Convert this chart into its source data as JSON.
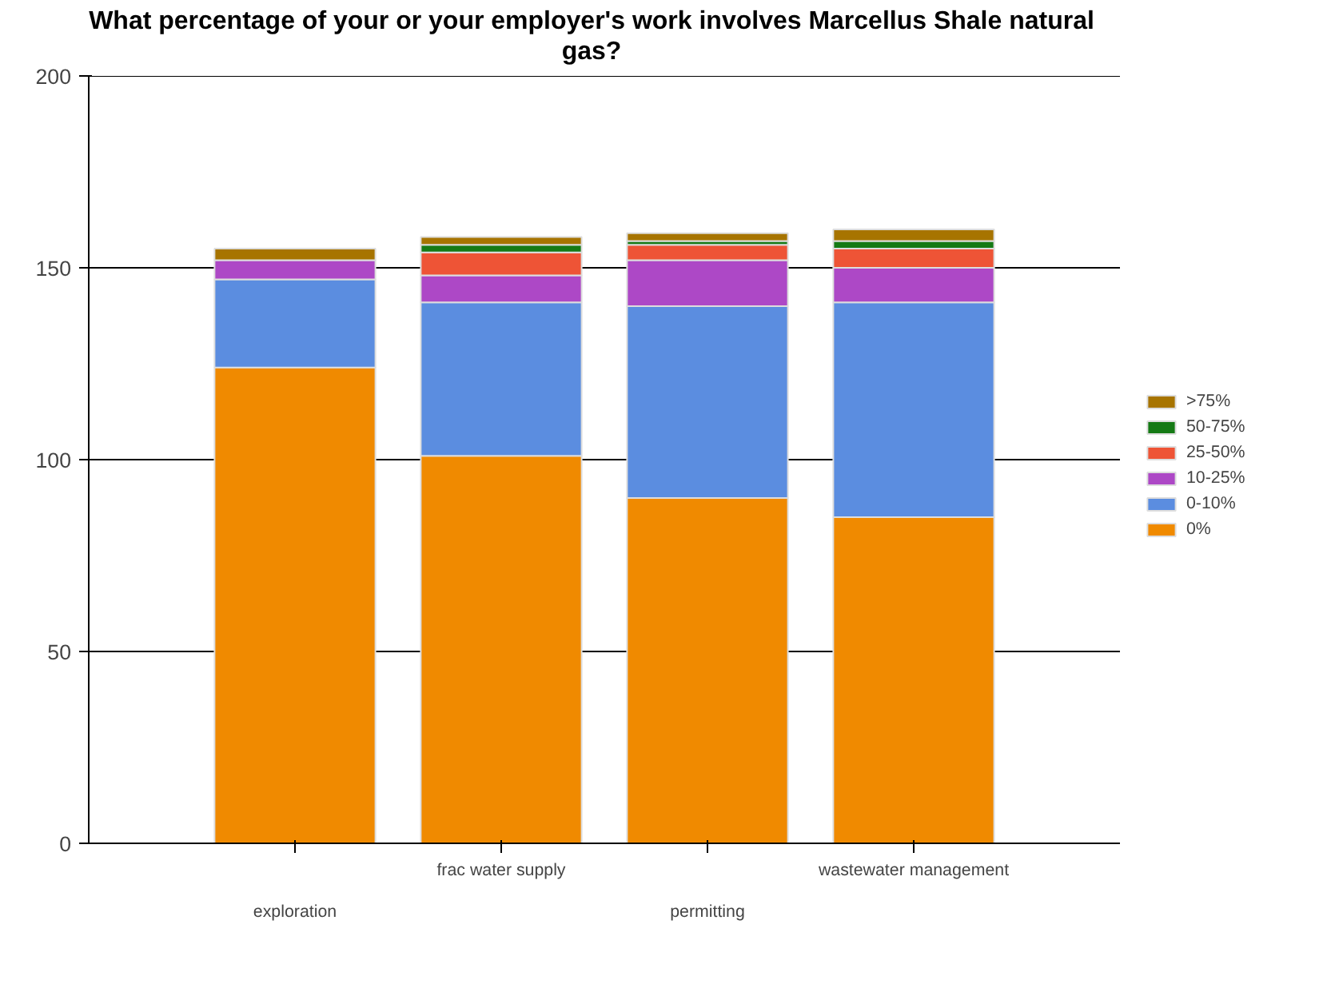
{
  "chart_data": {
    "type": "bar",
    "stacked": true,
    "title": "What percentage of your or your employer's work involves Marcellus Shale natural gas?",
    "categories": [
      "exploration",
      "frac water supply",
      "permitting",
      "wastewater management"
    ],
    "series": [
      {
        "name": "0%",
        "color": "#f08a00",
        "values": [
          124,
          101,
          90,
          85
        ]
      },
      {
        "name": "0-10%",
        "color": "#5b8de0",
        "values": [
          23,
          40,
          50,
          56
        ]
      },
      {
        "name": "10-25%",
        "color": "#ad48c6",
        "values": [
          5,
          7,
          12,
          9
        ]
      },
      {
        "name": "25-50%",
        "color": "#ee5436",
        "values": [
          0,
          6,
          4,
          5
        ]
      },
      {
        "name": "50-75%",
        "color": "#157a15",
        "values": [
          0,
          2,
          1,
          2
        ]
      },
      {
        "name": ">75%",
        "color": "#a77400",
        "values": [
          3,
          2,
          2,
          3
        ]
      }
    ],
    "ylim": [
      0,
      200
    ],
    "yticks": [
      0,
      50,
      100,
      150,
      200
    ],
    "grid": "y",
    "legend": "right"
  }
}
